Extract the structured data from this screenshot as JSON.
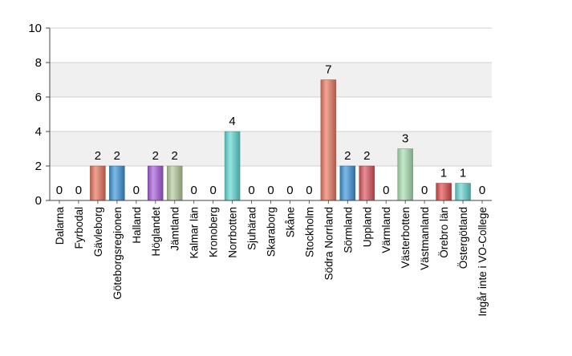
{
  "chart_data": {
    "type": "bar",
    "title": "",
    "xlabel": "",
    "ylabel": "",
    "ylim": [
      0,
      10
    ],
    "yticks": [
      0,
      2,
      4,
      6,
      8,
      10
    ],
    "grid": true,
    "legend": "none",
    "categories": [
      "Dalarna",
      "Fyrbodal",
      "Gävleborg",
      "Göteborgsregionen",
      "Halland",
      "Höglandet",
      "Jämtland",
      "Kalmar län",
      "Kronoberg",
      "Norrbotten",
      "Sjuhärad",
      "Skaraborg",
      "Skåne",
      "Stockholm",
      "Södra Norrland",
      "Sörmland",
      "Uppland",
      "Värmland",
      "Västerbotten",
      "Västmanland",
      "Örebro län",
      "Östergötland",
      "Ingår inte i VO-College"
    ],
    "values": [
      0,
      0,
      2,
      2,
      0,
      2,
      2,
      0,
      0,
      4,
      0,
      0,
      0,
      0,
      7,
      2,
      2,
      0,
      3,
      0,
      1,
      1,
      0
    ],
    "colors": [
      "#e8705a",
      "#e8705a",
      "#e8705a",
      "#3a93d8",
      "#9a5fd6",
      "#a65bd8",
      "#b4c99a",
      "#e8705a",
      "#e8705a",
      "#5ed8d3",
      "#e8705a",
      "#e8705a",
      "#e8705a",
      "#e8705a",
      "#ea7660",
      "#3a93d8",
      "#d9525b",
      "#9fd3a6",
      "#a8ddb0",
      "#e8705a",
      "#e0494a",
      "#63d3cf",
      "#cccccc"
    ]
  }
}
